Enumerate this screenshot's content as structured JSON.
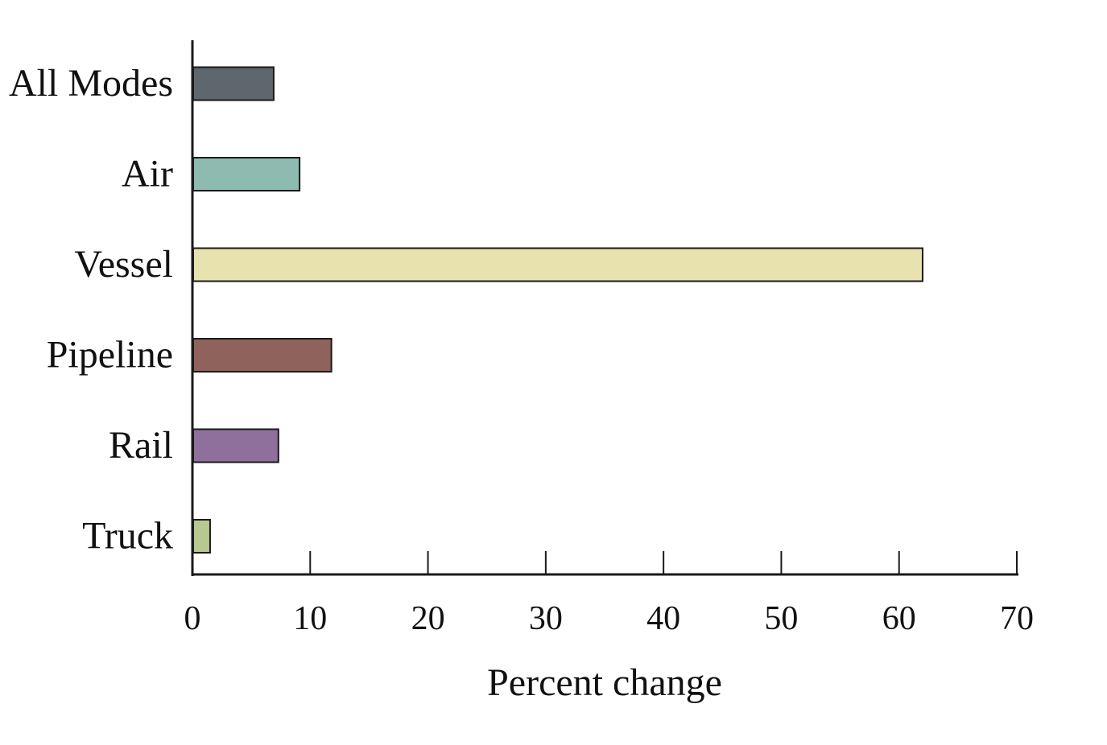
{
  "chart_data": {
    "type": "bar",
    "orientation": "horizontal",
    "categories": [
      "All Modes",
      "Air",
      "Vessel",
      "Pipeline",
      "Rail",
      "Truck"
    ],
    "values": [
      6.9,
      9.1,
      62.0,
      11.8,
      7.3,
      1.5
    ],
    "colors": [
      "#5e666e",
      "#8dbbb0",
      "#e8e2ae",
      "#8f625c",
      "#8f6f9c",
      "#b7c98f"
    ],
    "xlabel": "Percent change",
    "ylabel": "",
    "xlim": [
      0,
      70
    ],
    "xticks": [
      0,
      10,
      20,
      30,
      40,
      50,
      60,
      70
    ],
    "grid": false,
    "legend": "none"
  }
}
